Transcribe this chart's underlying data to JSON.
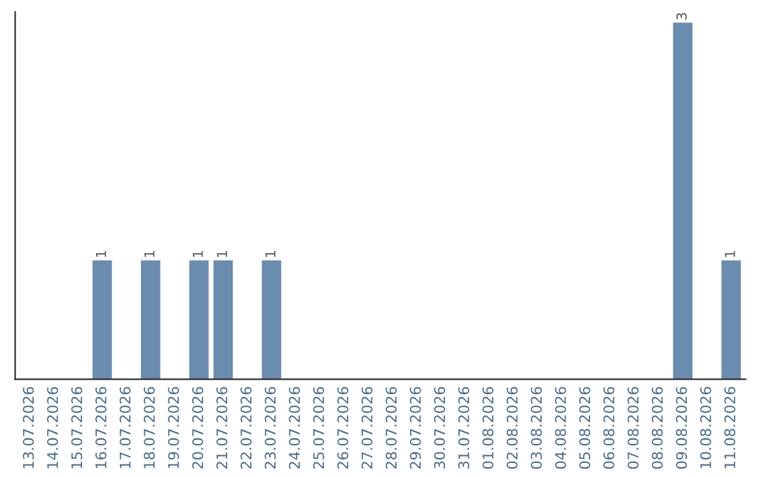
{
  "chart_data": {
    "type": "bar",
    "categories": [
      "13.07.2026",
      "14.07.2026",
      "15.07.2026",
      "16.07.2026",
      "17.07.2026",
      "18.07.2026",
      "19.07.2026",
      "20.07.2026",
      "21.07.2026",
      "22.07.2026",
      "23.07.2026",
      "24.07.2026",
      "25.07.2026",
      "26.07.2026",
      "27.07.2026",
      "28.07.2026",
      "29.07.2026",
      "30.07.2026",
      "31.07.2026",
      "01.08.2026",
      "02.08.2026",
      "03.08.2026",
      "04.08.2026",
      "05.08.2026",
      "06.08.2026",
      "07.08.2026",
      "08.08.2026",
      "09.08.2026",
      "10.08.2026",
      "11.08.2026"
    ],
    "values": [
      0,
      0,
      0,
      1,
      0,
      1,
      0,
      1,
      1,
      0,
      1,
      0,
      0,
      0,
      0,
      0,
      0,
      0,
      0,
      0,
      0,
      0,
      0,
      0,
      0,
      0,
      0,
      3,
      0,
      1
    ],
    "value_labels": [
      null,
      null,
      null,
      "1",
      null,
      "1",
      null,
      "1",
      "1",
      null,
      "1",
      null,
      null,
      null,
      null,
      null,
      null,
      null,
      null,
      null,
      null,
      null,
      null,
      null,
      null,
      null,
      null,
      "3",
      null,
      "1"
    ],
    "color": "#6a8caf",
    "tick_labels": "x",
    "grid": false,
    "legend": false
  }
}
